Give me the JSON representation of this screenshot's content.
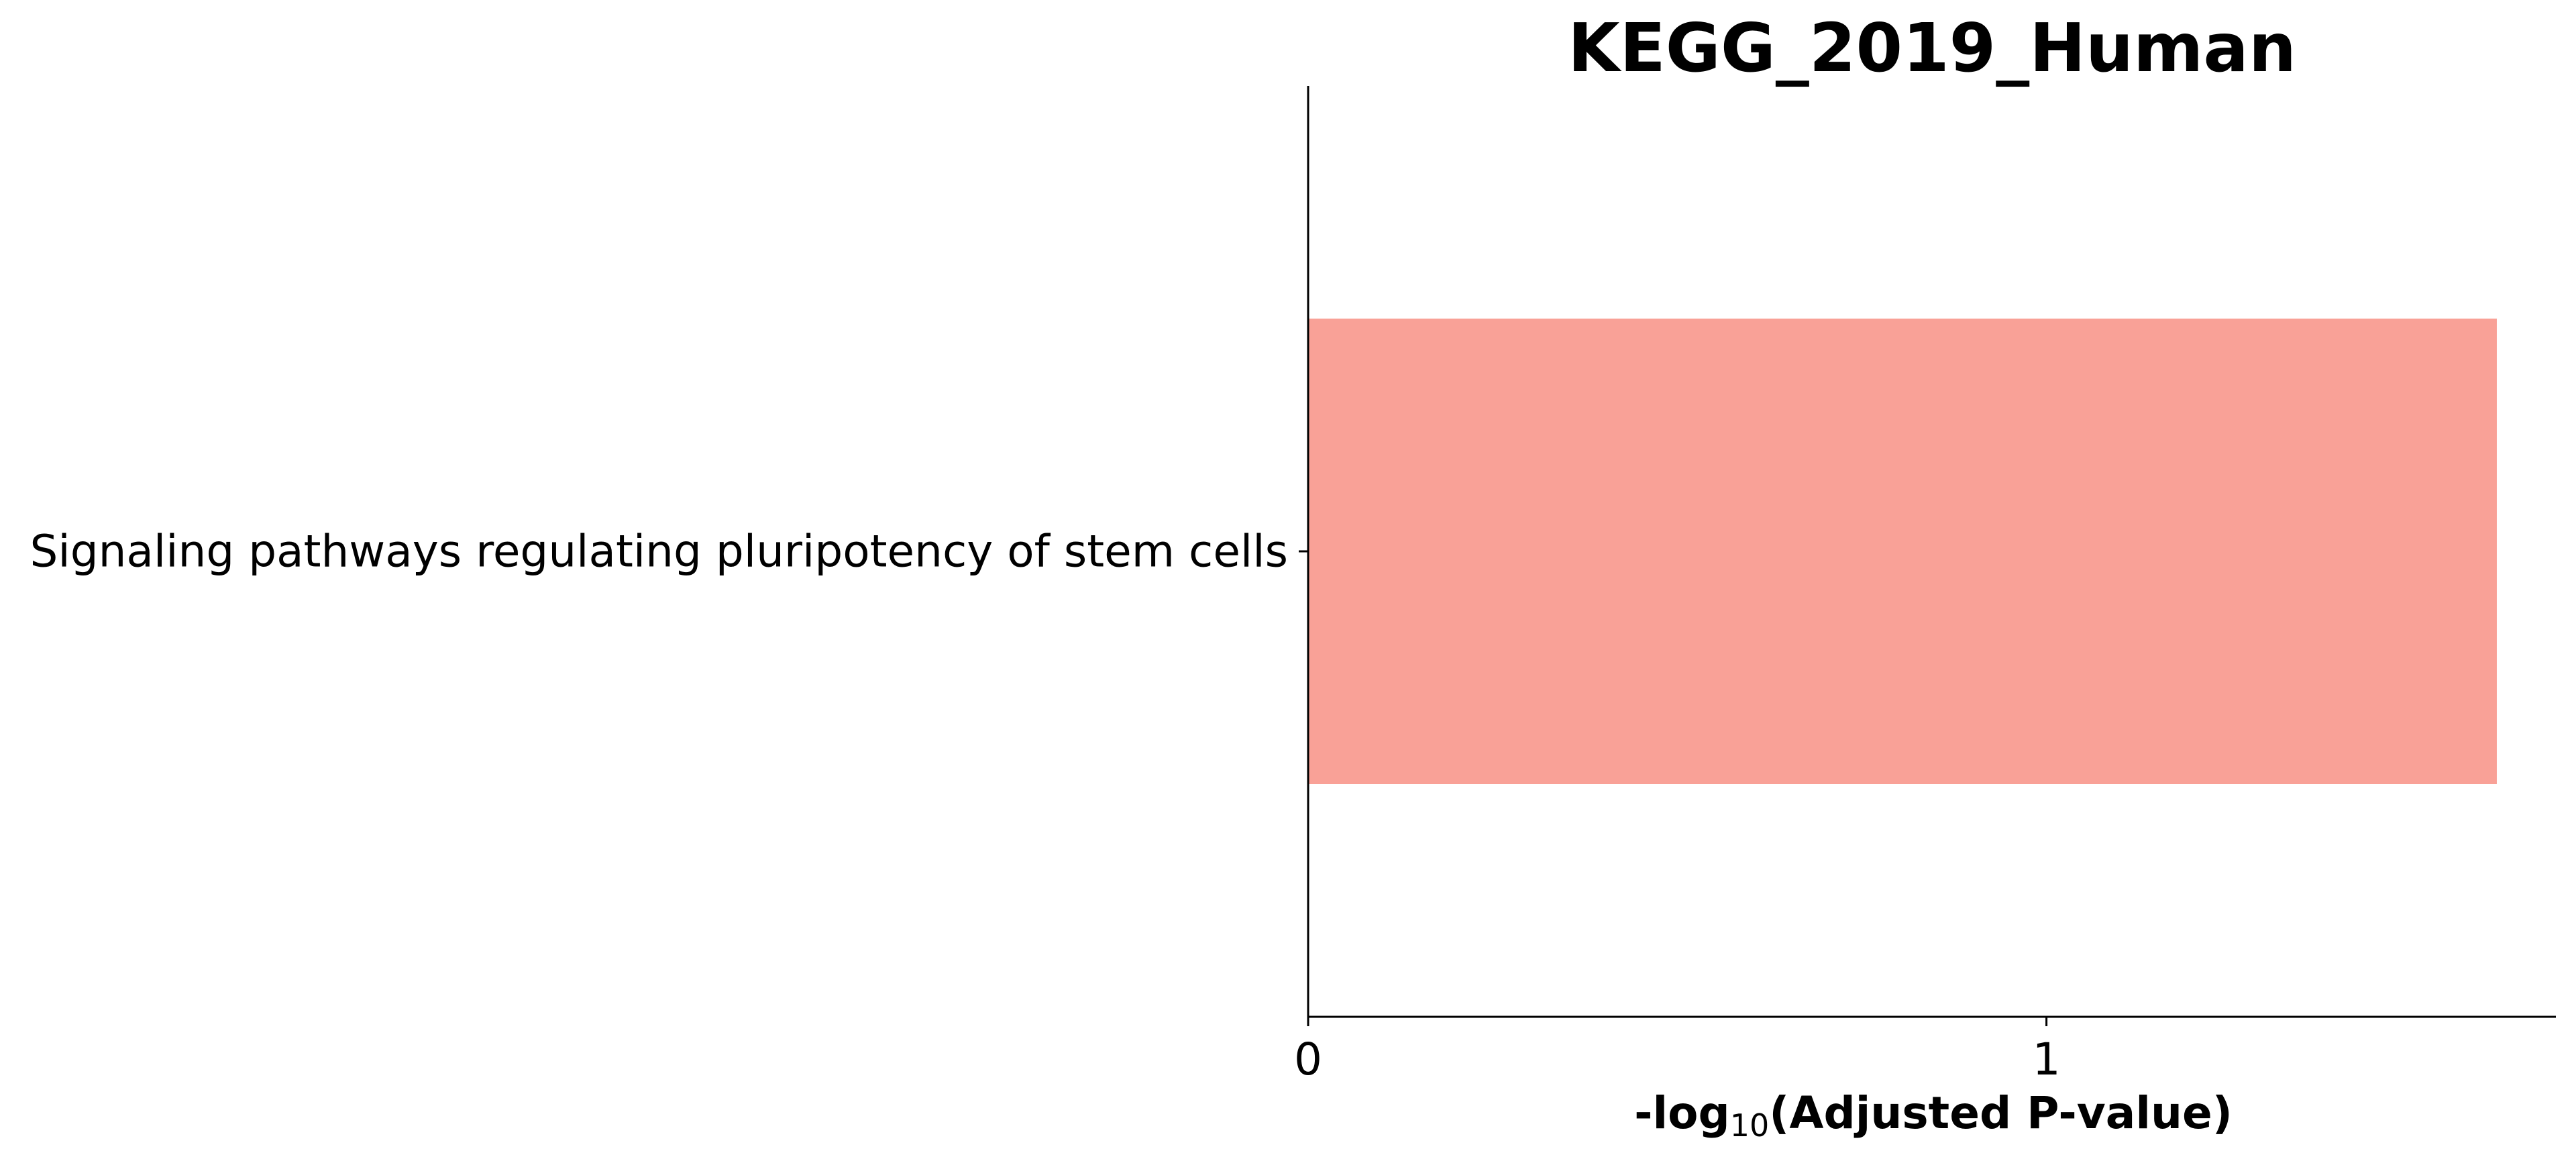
{
  "chart_data": {
    "type": "bar",
    "orientation": "horizontal",
    "title": "KEGG_2019_Human",
    "xlabel": {
      "prefix": "-log",
      "subscript": "10",
      "suffix": "(Adjusted P-value)"
    },
    "ylabel": "",
    "categories": [
      "Signaling pathways regulating pluripotency of stem cells"
    ],
    "values": [
      1.61
    ],
    "xlim": [
      0,
      1.69
    ],
    "xticks": [
      0,
      1
    ],
    "ylim": [
      -0.5,
      0.5
    ],
    "grid": false,
    "legend": "none",
    "colors": {
      "bar": "#f9a197",
      "axis": "#000000",
      "text": "#000000"
    }
  }
}
